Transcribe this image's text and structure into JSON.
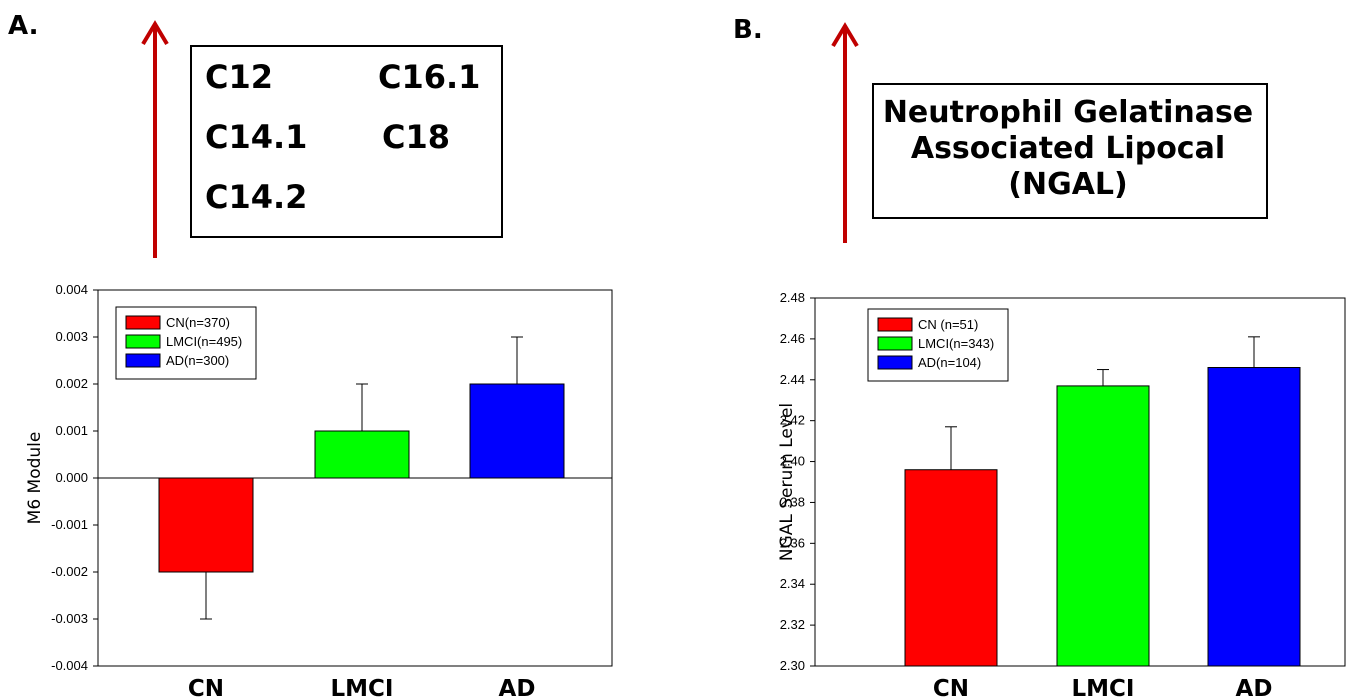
{
  "panel_a": {
    "letter": "A.",
    "box_items": [
      "C12",
      "C16.1",
      "C14.1",
      "C18",
      "C14.2"
    ]
  },
  "panel_b": {
    "letter": "B.",
    "box_lines": [
      "Neutrophil Gelatinase",
      "Associated Lipocal",
      "(NGAL)"
    ]
  },
  "colors": {
    "arrow": "#c00000",
    "CN": "#ff0000",
    "LMCI": "#00ff00",
    "AD": "#0000ff"
  },
  "chart_data": [
    {
      "type": "bar",
      "categories": [
        "CN",
        "LMCI",
        "AD"
      ],
      "values": [
        -0.002,
        0.001,
        0.002
      ],
      "error_upper": [
        -0.003,
        0.002,
        0.003
      ],
      "ylabel": "M6   Module",
      "xlabel": "",
      "ylim": [
        -0.004,
        0.004
      ],
      "yticks": [
        -0.004,
        -0.003,
        -0.002,
        -0.001,
        0.0,
        0.001,
        0.002,
        0.003,
        0.004
      ],
      "tick_decimals": 3,
      "legend": [
        "CN(n=370)",
        "LMCI(n=495)",
        "AD(n=300)"
      ],
      "legend_position": "top-left",
      "grid": false
    },
    {
      "type": "bar",
      "categories": [
        "CN",
        "LMCI",
        "AD"
      ],
      "values": [
        2.396,
        2.437,
        2.446
      ],
      "error_upper": [
        2.417,
        2.445,
        2.461
      ],
      "ylabel": "NGAL Serum Level",
      "xlabel": "",
      "ylim": [
        2.3,
        2.48
      ],
      "yticks": [
        2.3,
        2.32,
        2.34,
        2.36,
        2.38,
        2.4,
        2.42,
        2.44,
        2.46,
        2.48
      ],
      "tick_decimals": 2,
      "legend": [
        "CN (n=51)",
        "LMCI(n=343)",
        "AD(n=104)"
      ],
      "legend_position": "top-left",
      "grid": false
    }
  ]
}
